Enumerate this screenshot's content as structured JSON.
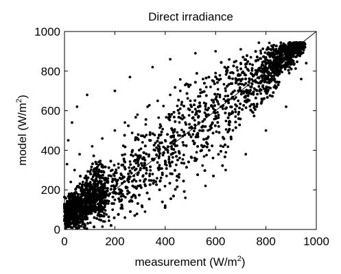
{
  "chart_data": {
    "type": "scatter",
    "title": "Direct irradiance",
    "xlabel": {
      "main": "measurement (W/m",
      "sup": "2",
      "tail": ")"
    },
    "ylabel": {
      "main": "model (W/m",
      "sup": "2",
      "tail": ")"
    },
    "xlim": [
      0,
      1000
    ],
    "ylim": [
      0,
      1000
    ],
    "xticks": [
      0,
      200,
      400,
      600,
      800,
      1000
    ],
    "yticks": [
      0,
      200,
      400,
      600,
      800,
      1000
    ],
    "grid": false,
    "reference_line": {
      "type": "identity",
      "x": [
        0,
        1000
      ],
      "y": [
        0,
        1000
      ]
    },
    "point_color": "#000000",
    "description_of_distribution": "Dense cloud of several thousand points spanning 0–950 W/m² on both axes, concentrated along the 1:1 line, widening at mid-range; densest near the origin and near (850, 850).",
    "points": [
      [
        5,
        5
      ],
      [
        12,
        40
      ],
      [
        20,
        15
      ],
      [
        30,
        80
      ],
      [
        8,
        120
      ],
      [
        45,
        30
      ],
      [
        60,
        100
      ],
      [
        18,
        180
      ],
      [
        70,
        150
      ],
      [
        90,
        60
      ],
      [
        25,
        240
      ],
      [
        100,
        200
      ],
      [
        40,
        300
      ],
      [
        120,
        130
      ],
      [
        150,
        90
      ],
      [
        80,
        260
      ],
      [
        10,
        330
      ],
      [
        130,
        280
      ],
      [
        160,
        220
      ],
      [
        200,
        150
      ],
      [
        60,
        380
      ],
      [
        190,
        300
      ],
      [
        220,
        260
      ],
      [
        250,
        180
      ],
      [
        110,
        420
      ],
      [
        240,
        340
      ],
      [
        280,
        300
      ],
      [
        300,
        220
      ],
      [
        150,
        460
      ],
      [
        270,
        400
      ],
      [
        320,
        350
      ],
      [
        350,
        280
      ],
      [
        200,
        500
      ],
      [
        310,
        440
      ],
      [
        360,
        400
      ],
      [
        400,
        330
      ],
      [
        240,
        540
      ],
      [
        340,
        490
      ],
      [
        400,
        450
      ],
      [
        440,
        390
      ],
      [
        290,
        580
      ],
      [
        380,
        530
      ],
      [
        430,
        500
      ],
      [
        470,
        440
      ],
      [
        330,
        620
      ],
      [
        420,
        570
      ],
      [
        480,
        540
      ],
      [
        510,
        480
      ],
      [
        370,
        650
      ],
      [
        460,
        610
      ],
      [
        520,
        580
      ],
      [
        560,
        520
      ],
      [
        420,
        680
      ],
      [
        500,
        650
      ],
      [
        560,
        620
      ],
      [
        600,
        560
      ],
      [
        460,
        700
      ],
      [
        540,
        690
      ],
      [
        600,
        660
      ],
      [
        640,
        610
      ],
      [
        500,
        730
      ],
      [
        580,
        720
      ],
      [
        640,
        700
      ],
      [
        690,
        650
      ],
      [
        550,
        760
      ],
      [
        620,
        760
      ],
      [
        680,
        740
      ],
      [
        730,
        700
      ],
      [
        600,
        790
      ],
      [
        670,
        790
      ],
      [
        720,
        780
      ],
      [
        770,
        740
      ],
      [
        650,
        820
      ],
      [
        720,
        820
      ],
      [
        770,
        810
      ],
      [
        810,
        780
      ],
      [
        700,
        840
      ],
      [
        760,
        850
      ],
      [
        810,
        840
      ],
      [
        850,
        820
      ],
      [
        740,
        870
      ],
      [
        800,
        870
      ],
      [
        850,
        870
      ],
      [
        890,
        860
      ],
      [
        780,
        890
      ],
      [
        840,
        900
      ],
      [
        880,
        900
      ],
      [
        910,
        890
      ],
      [
        820,
        910
      ],
      [
        870,
        920
      ],
      [
        900,
        925
      ],
      [
        930,
        915
      ],
      [
        860,
        930
      ],
      [
        910,
        935
      ],
      [
        940,
        930
      ],
      [
        50,
        620
      ],
      [
        30,
        540
      ],
      [
        15,
        450
      ],
      [
        90,
        680
      ],
      [
        200,
        700
      ],
      [
        260,
        770
      ],
      [
        350,
        820
      ],
      [
        420,
        860
      ],
      [
        520,
        890
      ],
      [
        600,
        900
      ],
      [
        700,
        910
      ],
      [
        80,
        20
      ],
      [
        160,
        40
      ],
      [
        240,
        60
      ],
      [
        320,
        90
      ],
      [
        400,
        120
      ],
      [
        480,
        160
      ],
      [
        560,
        220
      ],
      [
        640,
        300
      ],
      [
        720,
        380
      ],
      [
        800,
        500
      ],
      [
        880,
        620
      ],
      [
        940,
        760
      ],
      [
        960,
        840
      ]
    ]
  }
}
